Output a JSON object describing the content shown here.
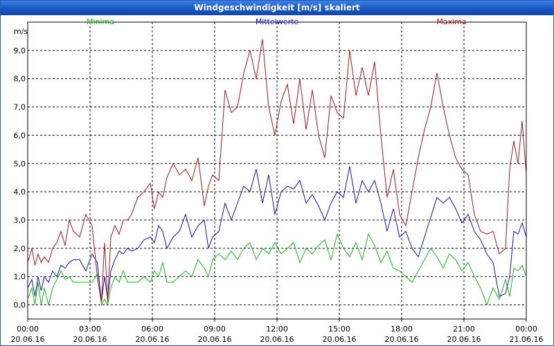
{
  "window": {
    "title": "Windgeschwindigkeit [m/s] skaliert"
  },
  "colors": {
    "minima": "#18b418",
    "mittel": "#1010b0",
    "maxima": "#a01818",
    "grid": "#000000"
  },
  "chart_data": {
    "type": "line",
    "title": "Windgeschwindigkeit [m/s] skaliert",
    "ylabel": "m/s",
    "xlabel": "",
    "ylim": [
      -0.5,
      10.0
    ],
    "xlim": [
      0,
      24
    ],
    "yticks": [
      {
        "v": 0,
        "label": "0,0"
      },
      {
        "v": 1,
        "label": "1,0"
      },
      {
        "v": 2,
        "label": "2,0"
      },
      {
        "v": 3,
        "label": "3,0"
      },
      {
        "v": 4,
        "label": "4,0"
      },
      {
        "v": 5,
        "label": "5,0"
      },
      {
        "v": 6,
        "label": "6,0"
      },
      {
        "v": 7,
        "label": "7,0"
      },
      {
        "v": 8,
        "label": "8,0"
      },
      {
        "v": 9,
        "label": "9,0"
      }
    ],
    "xticks": [
      {
        "h": 0,
        "time": "00:00",
        "date": "20.06.16"
      },
      {
        "h": 3,
        "time": "03:00",
        "date": "20.06.16"
      },
      {
        "h": 6,
        "time": "06:00",
        "date": "20.06.16"
      },
      {
        "h": 9,
        "time": "09:00",
        "date": "20.06.16"
      },
      {
        "h": 12,
        "time": "12:00",
        "date": "20.06.16"
      },
      {
        "h": 15,
        "time": "15:00",
        "date": "20.06.16"
      },
      {
        "h": 18,
        "time": "18:00",
        "date": "20.06.16"
      },
      {
        "h": 21,
        "time": "21:00",
        "date": "20.06.16"
      },
      {
        "h": 24,
        "time": "00:00",
        "date": "21.06.16"
      }
    ],
    "series": [
      {
        "name": "Minima",
        "key": "minima",
        "x": [
          0,
          0.2,
          0.35,
          0.5,
          0.65,
          0.8,
          1.0,
          1.2,
          1.4,
          1.6,
          1.8,
          2.0,
          2.2,
          2.5,
          2.8,
          3.1,
          3.35,
          3.55,
          3.7,
          3.85,
          4.0,
          4.2,
          4.4,
          4.6,
          4.8,
          5.0,
          5.3,
          5.6,
          5.9,
          6.1,
          6.3,
          6.5,
          6.7,
          7.0,
          7.3,
          7.6,
          7.9,
          8.2,
          8.5,
          8.7,
          8.9,
          9.2,
          9.5,
          9.8,
          10.1,
          10.4,
          10.7,
          11.0,
          11.3,
          11.6,
          11.9,
          12.2,
          12.5,
          12.8,
          13.1,
          13.4,
          13.7,
          14.0,
          14.3,
          14.6,
          14.9,
          15.2,
          15.5,
          15.8,
          16.1,
          16.4,
          16.7,
          17.0,
          17.3,
          17.6,
          17.9,
          18.2,
          18.5,
          18.8,
          19.1,
          19.4,
          19.7,
          20.0,
          20.3,
          20.6,
          20.9,
          21.2,
          21.5,
          21.8,
          22.1,
          22.4,
          22.7,
          23.0,
          23.2,
          23.4,
          23.6,
          23.8,
          24.0
        ],
        "y": [
          0.2,
          0.6,
          0.0,
          0.8,
          0.0,
          0.6,
          0.0,
          0.6,
          0.9,
          1.2,
          0.9,
          1.0,
          0.8,
          0.8,
          0.8,
          0.8,
          1.1,
          0.0,
          0.2,
          0.0,
          0.6,
          1.0,
          0.8,
          1.2,
          0.8,
          0.8,
          0.8,
          1.0,
          0.8,
          1.2,
          1.0,
          1.5,
          0.8,
          0.8,
          1.0,
          1.2,
          1.0,
          1.6,
          1.3,
          1.0,
          1.6,
          1.8,
          1.6,
          1.9,
          1.6,
          2.0,
          2.2,
          1.6,
          2.0,
          1.8,
          2.2,
          1.8,
          2.0,
          2.2,
          1.5,
          2.0,
          1.8,
          2.1,
          2.3,
          1.6,
          2.5,
          2.0,
          1.7,
          2.2,
          1.6,
          2.5,
          2.1,
          1.5,
          1.9,
          1.3,
          1.2,
          1.0,
          0.8,
          1.2,
          1.6,
          2.0,
          1.7,
          1.3,
          1.8,
          1.6,
          1.2,
          1.5,
          1.0,
          0.6,
          0.0,
          0.6,
          0.2,
          0.9,
          0.3,
          1.3,
          1.2,
          1.4,
          1.0
        ]
      },
      {
        "name": "Mittelwerte",
        "key": "mittel",
        "x": [
          0,
          0.2,
          0.35,
          0.5,
          0.65,
          0.8,
          1.0,
          1.2,
          1.4,
          1.6,
          1.8,
          2.0,
          2.2,
          2.5,
          2.8,
          3.1,
          3.35,
          3.55,
          3.7,
          3.85,
          4.0,
          4.2,
          4.4,
          4.6,
          4.8,
          5.0,
          5.3,
          5.6,
          5.9,
          6.1,
          6.3,
          6.5,
          6.7,
          7.0,
          7.3,
          7.6,
          7.9,
          8.2,
          8.5,
          8.7,
          8.9,
          9.2,
          9.5,
          9.8,
          10.1,
          10.4,
          10.7,
          11.0,
          11.3,
          11.6,
          11.9,
          12.2,
          12.5,
          12.8,
          13.1,
          13.4,
          13.7,
          14.0,
          14.3,
          14.6,
          14.9,
          15.2,
          15.5,
          15.8,
          16.1,
          16.4,
          16.7,
          17.0,
          17.3,
          17.6,
          17.9,
          18.2,
          18.5,
          18.8,
          19.1,
          19.4,
          19.7,
          20.0,
          20.3,
          20.6,
          20.9,
          21.2,
          21.5,
          21.8,
          22.1,
          22.4,
          22.7,
          23.0,
          23.2,
          23.4,
          23.6,
          23.8,
          24.0
        ],
        "y": [
          0.6,
          0.9,
          0.3,
          1.0,
          0.5,
          1.0,
          0.8,
          1.2,
          1.0,
          1.4,
          1.3,
          1.5,
          1.6,
          1.6,
          1.2,
          1.8,
          1.5,
          0.1,
          1.0,
          0.2,
          1.2,
          1.6,
          1.9,
          1.8,
          2.0,
          1.9,
          2.0,
          2.3,
          2.4,
          2.2,
          2.8,
          2.6,
          2.0,
          2.4,
          2.6,
          3.2,
          2.4,
          2.8,
          3.0,
          2.0,
          2.4,
          2.6,
          3.6,
          3.0,
          3.6,
          4.2,
          4.0,
          4.8,
          3.6,
          4.6,
          3.2,
          4.0,
          4.2,
          4.1,
          4.4,
          3.6,
          3.9,
          3.5,
          3.0,
          3.6,
          4.0,
          3.8,
          4.9,
          3.6,
          4.4,
          4.0,
          4.4,
          3.6,
          2.6,
          3.4,
          2.4,
          2.6,
          2.0,
          1.7,
          2.4,
          3.1,
          3.8,
          3.6,
          3.8,
          3.4,
          2.9,
          3.2,
          2.6,
          2.3,
          1.8,
          1.5,
          0.3,
          0.4,
          1.0,
          2.6,
          2.5,
          2.9,
          2.4
        ]
      },
      {
        "name": "Maxima",
        "key": "maxima",
        "x": [
          0,
          0.2,
          0.35,
          0.5,
          0.65,
          0.8,
          1.0,
          1.2,
          1.4,
          1.6,
          1.8,
          2.0,
          2.2,
          2.5,
          2.8,
          3.1,
          3.35,
          3.55,
          3.7,
          3.85,
          4.0,
          4.2,
          4.4,
          4.6,
          4.8,
          5.0,
          5.3,
          5.6,
          5.9,
          6.1,
          6.3,
          6.5,
          6.7,
          7.0,
          7.3,
          7.6,
          7.9,
          8.2,
          8.5,
          8.7,
          8.9,
          9.2,
          9.5,
          9.8,
          10.1,
          10.4,
          10.7,
          11.0,
          11.3,
          11.6,
          11.9,
          12.2,
          12.5,
          12.8,
          13.1,
          13.4,
          13.7,
          14.0,
          14.3,
          14.6,
          14.9,
          15.2,
          15.5,
          15.8,
          16.1,
          16.4,
          16.7,
          17.0,
          17.3,
          17.6,
          17.9,
          18.2,
          18.5,
          18.8,
          19.1,
          19.4,
          19.7,
          20.0,
          20.3,
          20.6,
          20.9,
          21.2,
          21.5,
          21.8,
          22.1,
          22.4,
          22.7,
          23.0,
          23.2,
          23.4,
          23.6,
          23.8,
          24.0
        ],
        "y": [
          1.5,
          2.0,
          1.4,
          1.8,
          1.5,
          1.7,
          1.5,
          2.0,
          2.2,
          2.6,
          2.1,
          3.0,
          2.6,
          2.4,
          3.2,
          2.8,
          1.0,
          0.1,
          2.2,
          0.1,
          2.4,
          2.8,
          2.5,
          3.0,
          3.0,
          3.2,
          3.8,
          4.0,
          4.3,
          3.4,
          4.0,
          3.8,
          4.5,
          5.0,
          4.6,
          4.8,
          4.4,
          5.2,
          3.5,
          4.2,
          4.6,
          4.4,
          7.6,
          6.8,
          7.0,
          8.2,
          9.0,
          8.0,
          9.4,
          7.0,
          6.0,
          7.2,
          7.8,
          6.4,
          8.0,
          6.2,
          7.6,
          6.0,
          5.2,
          7.4,
          6.8,
          6.6,
          9.0,
          7.4,
          8.4,
          7.4,
          8.6,
          6.0,
          3.8,
          4.8,
          3.2,
          2.8,
          4.0,
          5.2,
          6.2,
          7.0,
          8.2,
          7.0,
          6.0,
          5.2,
          4.8,
          4.6,
          3.2,
          2.6,
          2.5,
          2.6,
          1.8,
          2.0,
          4.8,
          5.8,
          5.0,
          6.5,
          4.6
        ]
      }
    ]
  }
}
